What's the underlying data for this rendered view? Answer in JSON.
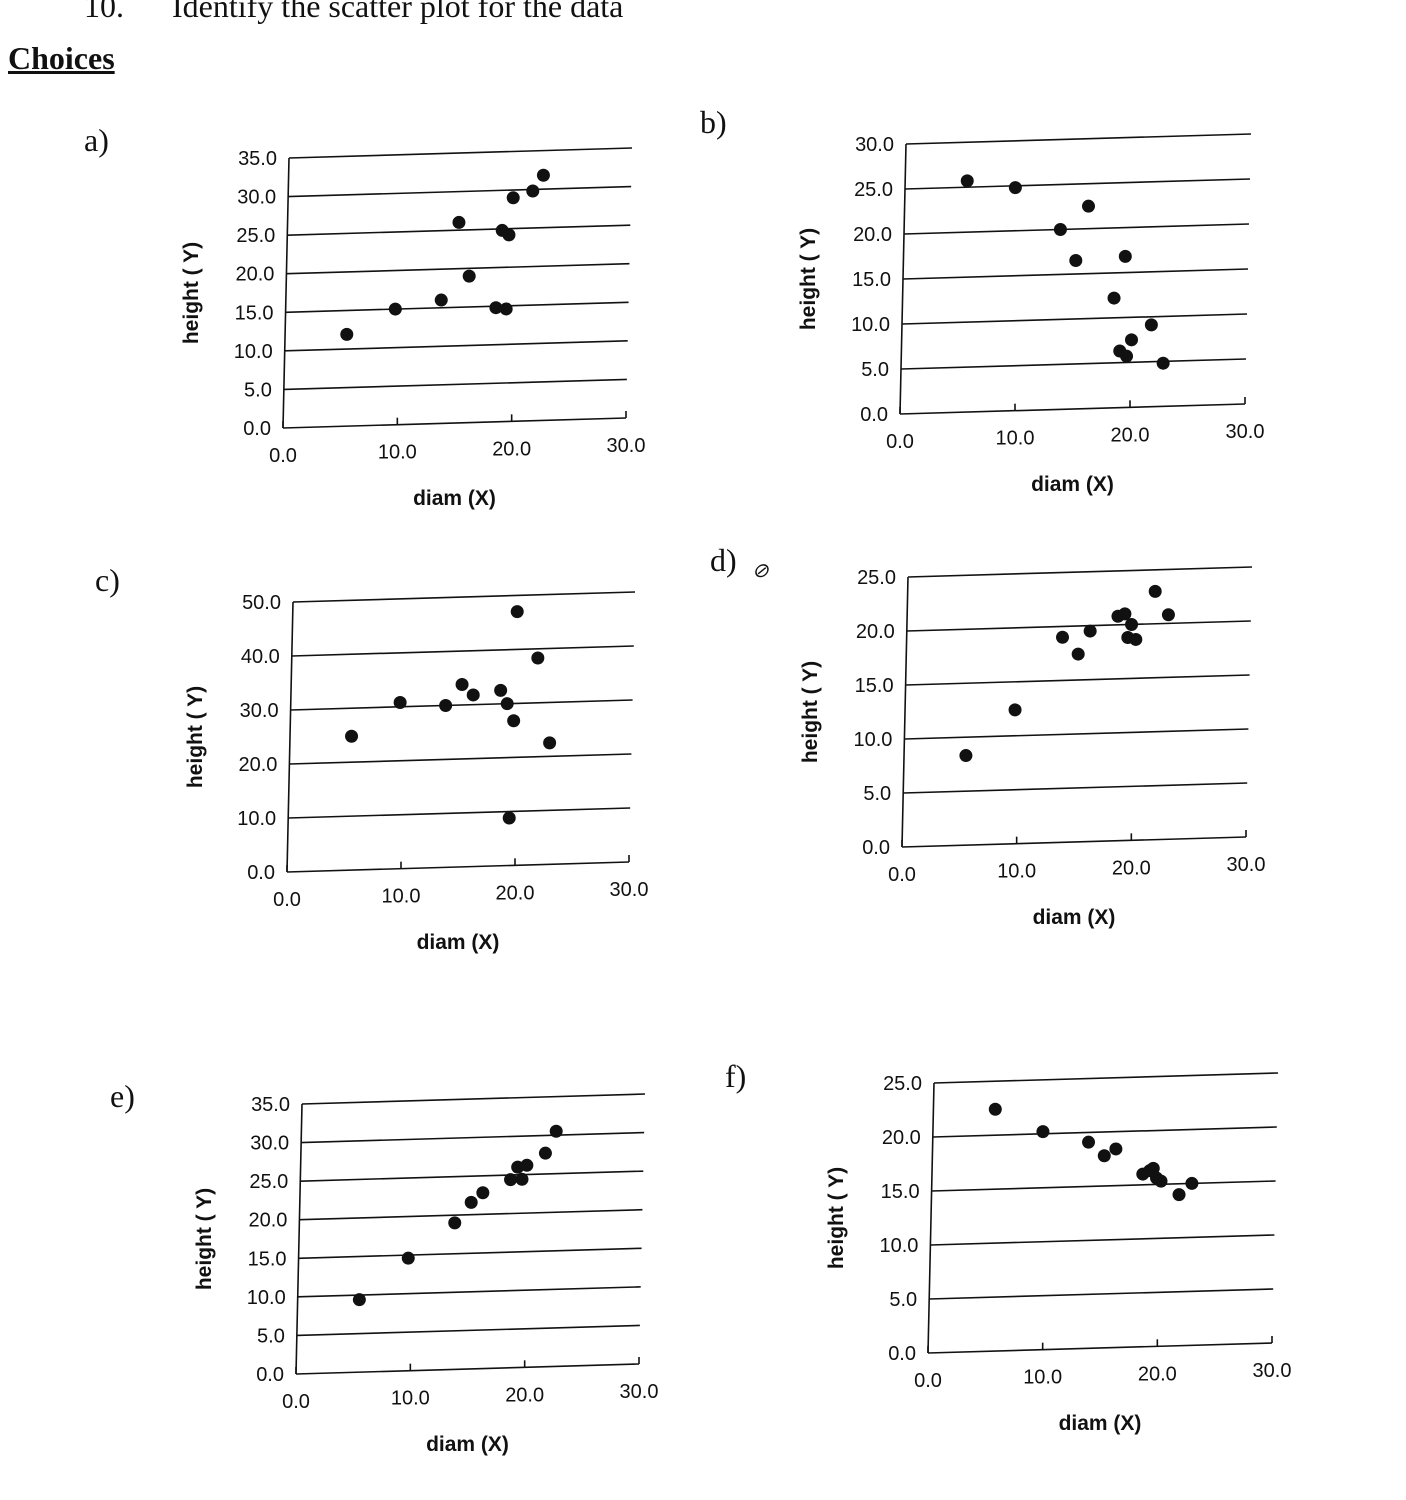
{
  "question": {
    "number": "10.",
    "text": "Identify the scatter plot for the data"
  },
  "choices_heading": "Choices",
  "chart_data": [
    {
      "option": "a)",
      "type": "scatter",
      "xlabel": "diam (X)",
      "ylabel": "height ( Y)",
      "xlim": [
        0,
        30
      ],
      "ylim": [
        0,
        35
      ],
      "xticks": [
        "0.0",
        "10.0",
        "20.0",
        "30.0"
      ],
      "yticks": [
        "0.0",
        "5.0",
        "10.0",
        "15.0",
        "20.0",
        "25.0",
        "30.0",
        "35.0"
      ],
      "points": [
        [
          5.4,
          11.9
        ],
        [
          9.6,
          15
        ],
        [
          13.6,
          16
        ],
        [
          15,
          26
        ],
        [
          16,
          19
        ],
        [
          18.4,
          14.8
        ],
        [
          18.8,
          24.8
        ],
        [
          19.3,
          14.6
        ],
        [
          19.4,
          24.2
        ],
        [
          19.7,
          29
        ],
        [
          21.4,
          29.8
        ],
        [
          22.3,
          31.8
        ]
      ]
    },
    {
      "option": "b)",
      "type": "scatter",
      "xlabel": "diam (X)",
      "ylabel": "height ( Y)",
      "xlim": [
        0,
        30
      ],
      "ylim": [
        0,
        30
      ],
      "xticks": [
        "0.0",
        "10.0",
        "20.0",
        "30.0"
      ],
      "yticks": [
        "0.0",
        "5.0",
        "10.0",
        "15.0",
        "20.0",
        "25.0",
        "30.0"
      ],
      "points": [
        [
          5.4,
          25.7
        ],
        [
          9.6,
          24.8
        ],
        [
          13.6,
          20
        ],
        [
          15,
          16.5
        ],
        [
          16,
          22.5
        ],
        [
          18.4,
          12.2
        ],
        [
          19,
          6.3
        ],
        [
          19.3,
          16.8
        ],
        [
          19.6,
          5.7
        ],
        [
          20,
          7.5
        ],
        [
          21.7,
          9.1
        ],
        [
          22.8,
          4.8
        ]
      ]
    },
    {
      "option": "c)",
      "type": "scatter",
      "xlabel": "diam (X)",
      "ylabel": "height ( Y)",
      "xlim": [
        0,
        30
      ],
      "ylim": [
        0,
        50
      ],
      "xticks": [
        "0.0",
        "10.0",
        "20.0",
        "30.0"
      ],
      "yticks": [
        "0.0",
        "10.0",
        "20.0",
        "30.0",
        "40.0",
        "50.0"
      ],
      "points": [
        [
          5.4,
          24.8
        ],
        [
          9.6,
          30.8
        ],
        [
          13.6,
          30
        ],
        [
          15,
          33.8
        ],
        [
          16,
          31.8
        ],
        [
          18.4,
          32.5
        ],
        [
          19,
          30
        ],
        [
          19.4,
          8.8
        ],
        [
          19.6,
          26.8
        ],
        [
          19.7,
          47
        ],
        [
          21.6,
          38.3
        ],
        [
          22.8,
          22.5
        ]
      ]
    },
    {
      "option": "d)",
      "annotation": "⊘",
      "type": "scatter",
      "xlabel": "diam (X)",
      "ylabel": "height ( Y)",
      "xlim": [
        0,
        30
      ],
      "ylim": [
        0,
        25
      ],
      "xticks": [
        "0.0",
        "10.0",
        "20.0",
        "30.0"
      ],
      "yticks": [
        "0.0",
        "5.0",
        "10.0",
        "15.0",
        "20.0",
        "25.0"
      ],
      "points": [
        [
          5.4,
          8.3
        ],
        [
          9.6,
          12.4
        ],
        [
          13.6,
          19
        ],
        [
          15,
          17.4
        ],
        [
          16,
          19.5
        ],
        [
          18.4,
          20.8
        ],
        [
          19,
          21
        ],
        [
          19.3,
          18.8
        ],
        [
          19.6,
          20
        ],
        [
          20,
          18.6
        ],
        [
          21.6,
          23
        ],
        [
          22.8,
          20.8
        ]
      ]
    },
    {
      "option": "e)",
      "type": "scatter",
      "xlabel": "diam (X)",
      "ylabel": "height ( Y)",
      "xlim": [
        0,
        30
      ],
      "ylim": [
        0,
        35
      ],
      "xticks": [
        "0.0",
        "10.0",
        "20.0",
        "30.0"
      ],
      "yticks": [
        "0.0",
        "5.0",
        "10.0",
        "15.0",
        "20.0",
        "25.0",
        "30.0",
        "35.0"
      ],
      "points": [
        [
          5.4,
          9.4
        ],
        [
          9.6,
          14.6
        ],
        [
          13.6,
          19
        ],
        [
          15,
          21.6
        ],
        [
          16,
          22.8
        ],
        [
          18.4,
          24.4
        ],
        [
          19,
          26
        ],
        [
          19.4,
          24.4
        ],
        [
          19.8,
          26.2
        ],
        [
          21.4,
          27.7
        ],
        [
          22.3,
          30.5
        ]
      ]
    },
    {
      "option": "f)",
      "type": "scatter",
      "xlabel": "diam (X)",
      "ylabel": "height ( Y)",
      "xlim": [
        0,
        30
      ],
      "ylim": [
        0,
        25
      ],
      "xticks": [
        "0.0",
        "10.0",
        "20.0",
        "30.0"
      ],
      "yticks": [
        "0.0",
        "5.0",
        "10.0",
        "15.0",
        "20.0",
        "25.0"
      ],
      "points": [
        [
          5.4,
          22.4
        ],
        [
          9.6,
          20.2
        ],
        [
          13.6,
          19.1
        ],
        [
          15,
          17.8
        ],
        [
          16,
          18.4
        ],
        [
          18.4,
          16
        ],
        [
          19,
          16.3
        ],
        [
          19.3,
          16.5
        ],
        [
          19.6,
          15.6
        ],
        [
          20,
          15.3
        ],
        [
          21.6,
          14
        ],
        [
          22.7,
          15
        ]
      ]
    }
  ]
}
